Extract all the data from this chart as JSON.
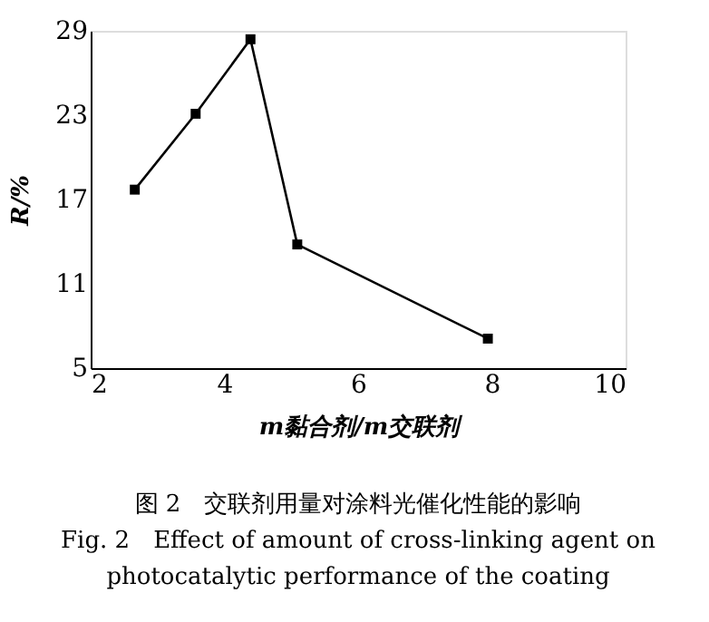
{
  "chart_data": {
    "type": "line",
    "xlabel": "m黏合剂/m交联剂",
    "ylabel": "R/%",
    "x": [
      2.66,
      3.57,
      4.39,
      5.09,
      7.94
    ],
    "series": [
      {
        "color": "#000000",
        "values": [
          17.7,
          23.1,
          28.4,
          13.8,
          7.1
        ]
      }
    ],
    "xlim": [
      2,
      10
    ],
    "xticks": [
      2,
      4,
      6,
      8,
      10
    ],
    "ylim": [
      5,
      29
    ],
    "yticks": [
      5,
      11,
      17,
      23,
      29
    ],
    "grid": false,
    "legend": false,
    "marker": "square",
    "line_style": "solid",
    "annotations": [
      "图 2　交联剂用量对涂料光催化性能的影响",
      "Fig. 2　Effect of amount of cross-linking agent on photocatalytic performance of the coating"
    ]
  }
}
